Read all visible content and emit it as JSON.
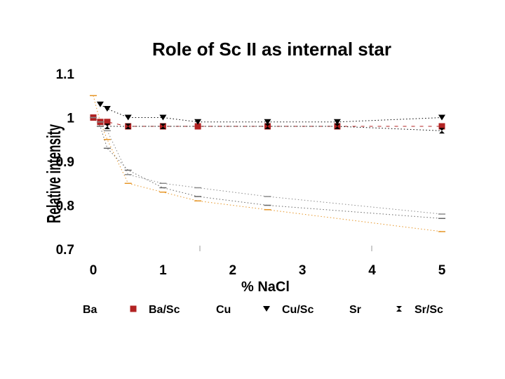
{
  "chart_data": {
    "type": "line",
    "title": "Role of Sc II as internal star",
    "xlabel": "% NaCl",
    "ylabel": "Relative intensity",
    "xlim": [
      0,
      5
    ],
    "ylim": [
      0.7,
      1.1
    ],
    "xticks": [
      "0",
      "1",
      "2",
      "3",
      "4",
      "5"
    ],
    "yticks": [
      "0.7",
      "0.8",
      "0.9",
      "1",
      "1.1"
    ],
    "series": [
      {
        "name": "Ba",
        "marker": "dash",
        "color": "#e69526",
        "line": "dotted",
        "x": [
          0,
          0.1,
          0.2,
          0.5,
          1,
          1.5,
          2.5,
          5
        ],
        "y": [
          1.05,
          0.99,
          0.95,
          0.85,
          0.83,
          0.81,
          0.79,
          0.74
        ]
      },
      {
        "name": "Ba/Sc",
        "marker": "square",
        "color": "#b22222",
        "line": "dashed",
        "x": [
          0,
          0.1,
          0.2,
          0.5,
          1,
          1.5,
          2.5,
          3.5,
          5
        ],
        "y": [
          1.0,
          0.99,
          0.99,
          0.98,
          0.98,
          0.98,
          0.98,
          0.98,
          0.98
        ]
      },
      {
        "name": "Cu",
        "marker": "dash",
        "color": "#666666",
        "line": "dotted",
        "x": [
          0,
          0.1,
          0.2,
          0.5,
          1,
          1.5,
          2.5,
          5
        ],
        "y": [
          1.0,
          0.98,
          0.93,
          0.88,
          0.84,
          0.82,
          0.8,
          0.77
        ]
      },
      {
        "name": "Cu/Sc",
        "marker": "triangle",
        "color": "#000000",
        "line": "dotted",
        "x": [
          0.1,
          0.2,
          0.5,
          1,
          1.5,
          2.5,
          3.5,
          5
        ],
        "y": [
          1.03,
          1.02,
          1.0,
          1.0,
          0.99,
          0.99,
          0.99,
          1.0
        ]
      },
      {
        "name": "Sr",
        "marker": "dash",
        "color": "#8a8a8a",
        "line": "dotted",
        "x": [
          0,
          0.1,
          0.2,
          0.5,
          1,
          1.5,
          2.5,
          5
        ],
        "y": [
          1.0,
          0.99,
          0.97,
          0.87,
          0.85,
          0.84,
          0.82,
          0.78
        ]
      },
      {
        "name": "Sr/Sc",
        "marker": "hourglass",
        "color": "#000000",
        "line": "dotted",
        "x": [
          0.2,
          0.5,
          1,
          2.5,
          3.5,
          5
        ],
        "y": [
          0.98,
          0.98,
          0.98,
          0.98,
          0.98,
          0.97
        ]
      }
    ]
  }
}
